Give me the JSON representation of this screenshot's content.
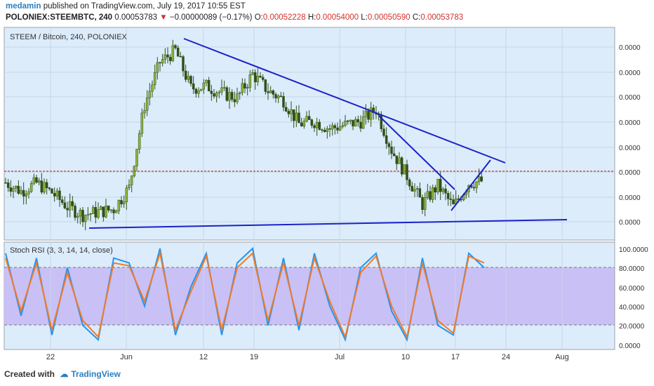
{
  "header": {
    "author": "medamin",
    "published_text": "published on TradingView.com, July 19, 2017 10:55 EST",
    "symbol": "POLONIEX:STEEMBTC, 240",
    "last_price": "0.00053783",
    "change_arrow": "▼",
    "change": "−0.00000089 (−0.17%)",
    "o_label": "O:",
    "o_value": "0.00052228",
    "h_label": "H:",
    "h_value": "0.00054000",
    "l_label": "L:",
    "l_value": "0.00050590",
    "c_label": "C:",
    "c_value": "0.00053783"
  },
  "chart": {
    "pane_title": "STEEM / Bitcoin, 240, POLONIEX",
    "price_axis_labels": [
      "0.0000",
      "0.0000",
      "0.0000",
      "0.0000",
      "0.0000",
      "0.0000",
      "0.0000",
      "0.0000"
    ],
    "rsi_title": "Stoch RSI (3, 3, 14, 14, close)",
    "rsi_axis_labels": [
      "100.0000",
      "80.0000",
      "60.0000",
      "40.0000",
      "20.0000",
      "0.0000"
    ],
    "date_labels": [
      "22",
      "Jun",
      "12",
      "19",
      "Jul",
      "10",
      "17",
      "24",
      "Aug"
    ]
  },
  "footer": {
    "created_with": "Created with",
    "brand": "TradingView"
  },
  "colors": {
    "pane_bg": "#dcecfb",
    "rsi_band": "#c9c0f5",
    "trendline": "#1a22c8",
    "candle": "#2f4f1a",
    "candle_up_accent": "#8fb33a",
    "rsi_k": "#2196f3",
    "rsi_d": "#f07a28",
    "level_line": "#c0392b"
  },
  "chart_data": [
    {
      "type": "line",
      "title": "STEEM / Bitcoin, 240, POLONIEX",
      "x": [
        "May 18",
        "May 20",
        "May 22",
        "May 24",
        "May 26",
        "May 28",
        "May 30",
        "Jun 1",
        "Jun 3",
        "Jun 5",
        "Jun 7",
        "Jun 9",
        "Jun 11",
        "Jun 13",
        "Jun 15",
        "Jun 17",
        "Jun 19",
        "Jun 21",
        "Jun 23",
        "Jun 25",
        "Jun 27",
        "Jun 29",
        "Jul 1",
        "Jul 3",
        "Jul 5",
        "Jul 7",
        "Jul 9",
        "Jul 11",
        "Jul 13",
        "Jul 15",
        "Jul 17",
        "Jul 19"
      ],
      "series": [
        {
          "values": [
            0.596,
            0.578,
            0.595,
            0.575,
            0.545,
            0.528,
            0.534,
            0.54,
            0.585,
            0.76,
            0.85,
            0.875,
            0.795,
            0.8,
            0.785,
            0.775,
            0.825,
            0.79,
            0.77,
            0.72,
            0.725,
            0.71,
            0.718,
            0.725,
            0.75,
            0.665,
            0.61,
            0.55,
            0.59,
            0.545,
            0.595,
            0.6
          ]
        }
      ],
      "ylabel": "",
      "annotations": [
        "descending resistance trendline from Jun 9 high",
        "horizontal support line near May 26 low",
        "falling wedge Jul 6 to Jul 19"
      ]
    },
    {
      "type": "line",
      "title": "Stoch RSI (3, 3, 14, 14, close)",
      "ylim": [
        0,
        100
      ],
      "x": [
        "May 18",
        "May 20",
        "May 22",
        "May 24",
        "May 26",
        "May 28",
        "May 30",
        "Jun 1",
        "Jun 3",
        "Jun 5",
        "Jun 7",
        "Jun 9",
        "Jun 11",
        "Jun 13",
        "Jun 15",
        "Jun 17",
        "Jun 19",
        "Jun 21",
        "Jun 23",
        "Jun 25",
        "Jun 27",
        "Jun 29",
        "Jul 1",
        "Jul 3",
        "Jul 5",
        "Jul 7",
        "Jul 9",
        "Jul 11",
        "Jul 13",
        "Jul 15",
        "Jul 17",
        "Jul 19"
      ],
      "series": [
        {
          "values": [
            95,
            30,
            90,
            10,
            80,
            20,
            5,
            90,
            85,
            40,
            100,
            10,
            60,
            95,
            10,
            85,
            100,
            20,
            90,
            15,
            95,
            40,
            5,
            80,
            95,
            35,
            5,
            90,
            20,
            10,
            95,
            80
          ]
        },
        {
          "values": [
            90,
            35,
            85,
            15,
            75,
            25,
            8,
            85,
            82,
            45,
            95,
            15,
            55,
            92,
            15,
            80,
            95,
            25,
            85,
            20,
            90,
            45,
            8,
            75,
            92,
            40,
            8,
            85,
            25,
            12,
            92,
            85
          ]
        }
      ],
      "bands": [
        20,
        80
      ]
    }
  ]
}
